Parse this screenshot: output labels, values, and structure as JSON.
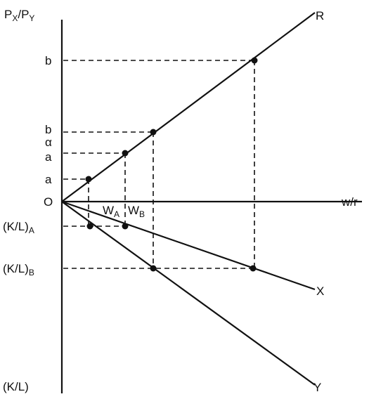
{
  "axes": {
    "y_label": {
      "main": "P",
      "s1": "X",
      "slash": "/P",
      "s2": "Y"
    },
    "x_label": "w/r",
    "origin": "O",
    "bottom_label": "(K/L)"
  },
  "rays": {
    "r": "R",
    "x": "X",
    "y": "Y"
  },
  "price_ticks": {
    "b_high": "b",
    "b_mid": "b",
    "alpha": "α",
    "a_mid": "a",
    "a_low": "a"
  },
  "kl_ticks": {
    "a": {
      "main": "(K/L)",
      "sub": "A"
    },
    "b": {
      "main": "(K/L)",
      "sub": "B"
    }
  },
  "wage_labels": {
    "wa": {
      "main": "W",
      "sub": "A"
    },
    "wb": {
      "main": "W",
      "sub": "B"
    }
  }
}
